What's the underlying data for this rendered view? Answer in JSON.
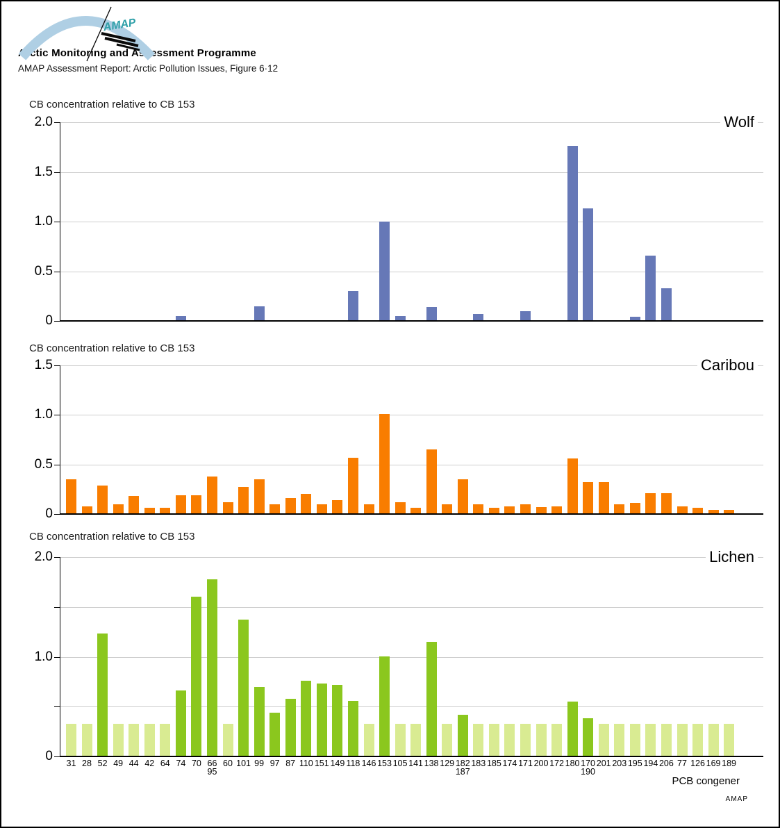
{
  "header": {
    "org_name": "Arctic Monitoring and Assessment Programme",
    "report_line": "AMAP Assessment Report: Arctic Pollution Issues, Figure 6·12",
    "logo_text": "AMAP"
  },
  "footer": {
    "xaxis_label": "PCB congener",
    "credit": "AMAP"
  },
  "colors": {
    "wolf_bar": "#6678B7",
    "caribou_bar": "#F97D00",
    "lichen_bar": "#8BC71E",
    "lichen_nd_bar": "#D9EB92",
    "logo_arc": "#AFCFE4",
    "logo_text": "#2D9FA8"
  },
  "chart_data": [
    {
      "type": "bar",
      "title": "Wolf",
      "ylabel": "CB concentration relative to CB 153",
      "xlabel": "PCB congener",
      "ylim": [
        0,
        2.0
      ],
      "grid": true,
      "bar_color": "#6678B7",
      "yticks": [
        {
          "v": 0,
          "label": "0"
        },
        {
          "v": 0.5,
          "label": "0.5"
        },
        {
          "v": 1.0,
          "label": "1.0"
        },
        {
          "v": 1.5,
          "label": "1.5"
        },
        {
          "v": 2.0,
          "label": "2.0"
        }
      ],
      "categories": [
        "31",
        "28",
        "52",
        "49",
        "44",
        "42",
        "64",
        "74",
        "70",
        "66/95",
        "60",
        "101",
        "99",
        "97",
        "87",
        "110",
        "151",
        "149",
        "118",
        "146",
        "153",
        "105",
        "141",
        "138",
        "129",
        "182/187",
        "183",
        "185",
        "174",
        "171",
        "200",
        "172",
        "180",
        "170/190",
        "201",
        "203",
        "195",
        "194",
        "206",
        "77",
        "126",
        "169",
        "189"
      ],
      "values": [
        null,
        null,
        null,
        null,
        null,
        null,
        null,
        0.05,
        null,
        null,
        null,
        null,
        0.15,
        null,
        null,
        null,
        null,
        null,
        0.3,
        null,
        1.0,
        0.05,
        null,
        0.14,
        null,
        null,
        0.07,
        null,
        null,
        0.1,
        null,
        null,
        1.76,
        1.13,
        null,
        null,
        0.04,
        0.66,
        0.33,
        null,
        null,
        null,
        null
      ]
    },
    {
      "type": "bar",
      "title": "Caribou",
      "ylabel": "CB concentration relative to CB 153",
      "xlabel": "PCB congener",
      "ylim": [
        0,
        1.5
      ],
      "grid": true,
      "bar_color": "#F97D00",
      "yticks": [
        {
          "v": 0,
          "label": "0"
        },
        {
          "v": 0.5,
          "label": "0.5"
        },
        {
          "v": 1.0,
          "label": "1.0"
        },
        {
          "v": 1.5,
          "label": "1.5"
        }
      ],
      "categories": [
        "31",
        "28",
        "52",
        "49",
        "44",
        "42",
        "64",
        "74",
        "70",
        "66/95",
        "60",
        "101",
        "99",
        "97",
        "87",
        "110",
        "151",
        "149",
        "118",
        "146",
        "153",
        "105",
        "141",
        "138",
        "129",
        "182/187",
        "183",
        "185",
        "174",
        "171",
        "200",
        "172",
        "180",
        "170/190",
        "201",
        "203",
        "195",
        "194",
        "206",
        "77",
        "126",
        "169",
        "189"
      ],
      "values": [
        0.35,
        0.08,
        0.29,
        0.1,
        0.18,
        0.06,
        0.06,
        0.19,
        0.19,
        0.38,
        0.12,
        0.27,
        0.35,
        0.1,
        0.16,
        0.2,
        0.1,
        0.14,
        0.57,
        0.1,
        1.01,
        0.12,
        0.06,
        0.65,
        0.1,
        0.35,
        0.1,
        0.06,
        0.08,
        0.1,
        0.07,
        0.08,
        0.56,
        0.32,
        0.32,
        0.1,
        0.11,
        0.21,
        0.21,
        0.08,
        0.06,
        0.04,
        0.04
      ]
    },
    {
      "type": "bar",
      "title": "Lichen",
      "ylabel": "CB concentration relative to CB 153",
      "xlabel": "PCB congener",
      "ylim": [
        0,
        2.0
      ],
      "grid": true,
      "bar_color": "#8BC71E",
      "nd_value": 0.33,
      "nd_color": "#D9EB92",
      "yticks": [
        {
          "v": 0,
          "label": "0"
        },
        {
          "v": 0.5,
          "label": ""
        },
        {
          "v": 1.0,
          "label": "1.0"
        },
        {
          "v": 1.5,
          "label": ""
        },
        {
          "v": 2.0,
          "label": "2.0"
        }
      ],
      "categories": [
        "31",
        "28",
        "52",
        "49",
        "44",
        "42",
        "64",
        "74",
        "70",
        "66/95",
        "60",
        "101",
        "99",
        "97",
        "87",
        "110",
        "151",
        "149",
        "118",
        "146",
        "153",
        "105",
        "141",
        "138",
        "129",
        "182/187",
        "183",
        "185",
        "174",
        "171",
        "200",
        "172",
        "180",
        "170/190",
        "201",
        "203",
        "195",
        "194",
        "206",
        "77",
        "126",
        "169",
        "189"
      ],
      "values": [
        null,
        null,
        1.23,
        null,
        null,
        null,
        null,
        0.66,
        1.6,
        1.78,
        null,
        1.37,
        0.7,
        0.44,
        0.58,
        0.76,
        0.73,
        0.72,
        0.56,
        null,
        1.0,
        null,
        null,
        1.15,
        null,
        0.42,
        null,
        null,
        null,
        null,
        null,
        null,
        0.55,
        0.38,
        null,
        null,
        null,
        null,
        null,
        null,
        null,
        null,
        null
      ]
    }
  ]
}
